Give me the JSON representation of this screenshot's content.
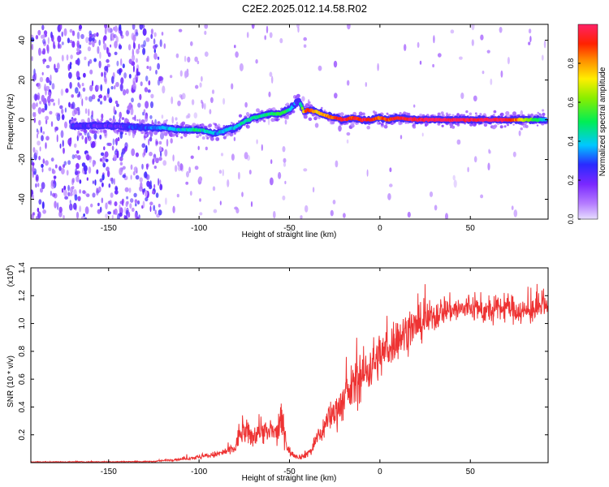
{
  "title": "C2E2.2025.012.14.58.R02",
  "chart_data": [
    {
      "type": "heatmap",
      "xlabel": "Height of straight line (km)",
      "ylabel": "Frequency (Hz)",
      "xlim": [
        -193,
        93
      ],
      "ylim": [
        -50,
        48
      ],
      "x_ticks": [
        -150,
        -100,
        -50,
        0,
        50
      ],
      "y_ticks": [
        -40,
        -20,
        0,
        20,
        40
      ],
      "colorbar": {
        "label": "Normalized spectral amplitude",
        "range": [
          0,
          1
        ],
        "ticks": [
          0.0,
          0.2,
          0.4,
          0.6,
          0.8
        ]
      },
      "ridge": {
        "x": [
          -165,
          -150,
          -130,
          -120,
          -110,
          -100,
          -95,
          -90,
          -85,
          -80,
          -75,
          -70,
          -65,
          -60,
          -55,
          -50,
          -47,
          -45,
          -42,
          -40,
          -35,
          -30,
          -25,
          -20,
          -15,
          -10,
          -5,
          0,
          5,
          10,
          20,
          30,
          50,
          70,
          90
        ],
        "frequency": [
          -3,
          -3,
          -4,
          -4,
          -5,
          -5,
          -6,
          -7,
          -5,
          -4,
          -1,
          1,
          2,
          3,
          3,
          5,
          8,
          10,
          4,
          5,
          4,
          2,
          1,
          0,
          1,
          0,
          0,
          1,
          0,
          1,
          0,
          0,
          0,
          0,
          0
        ],
        "amplitude": [
          0.25,
          0.2,
          0.3,
          0.35,
          0.4,
          0.45,
          0.4,
          0.35,
          0.4,
          0.4,
          0.45,
          0.45,
          0.45,
          0.5,
          0.55,
          0.45,
          0.3,
          0.2,
          0.8,
          0.9,
          0.75,
          0.8,
          0.9,
          0.95,
          0.9,
          0.95,
          0.9,
          0.85,
          0.9,
          0.95,
          0.98,
          1.0,
          1.0,
          0.98,
          0.4
        ]
      }
    },
    {
      "type": "line",
      "xlabel": "Height of straight line (km)",
      "ylabel": "SNR (10 * v/v)",
      "y_multiplier": "(x10",
      "y_multiplier_exp": "4",
      "y_multiplier_close": ")",
      "xlim": [
        -193,
        93
      ],
      "ylim": [
        0,
        1.4
      ],
      "x_ticks": [
        -150,
        -100,
        -50,
        0,
        50
      ],
      "y_ticks": [
        0.2,
        0.4,
        0.6,
        0.8,
        1.0,
        1.2,
        1.4
      ],
      "color": "#ee3333",
      "series": {
        "x": [
          -193,
          -150,
          -125,
          -120,
          -110,
          -100,
          -90,
          -85,
          -80,
          -78,
          -75,
          -72,
          -70,
          -68,
          -65,
          -62,
          -60,
          -57,
          -55,
          -53,
          -51,
          -50,
          -48,
          -45,
          -42,
          -40,
          -37,
          -35,
          -32,
          -30,
          -28,
          -25,
          -22,
          -20,
          -17,
          -15,
          -12,
          -10,
          -7,
          -5,
          -2,
          0,
          3,
          5,
          8,
          10,
          13,
          15,
          18,
          20,
          23,
          25,
          28,
          30,
          33,
          35,
          40,
          45,
          50,
          55,
          60,
          65,
          70,
          75,
          80,
          85,
          90,
          93
        ],
        "mean": [
          0.005,
          0.006,
          0.008,
          0.015,
          0.025,
          0.04,
          0.06,
          0.08,
          0.1,
          0.2,
          0.22,
          0.2,
          0.18,
          0.23,
          0.25,
          0.2,
          0.23,
          0.2,
          0.3,
          0.25,
          0.1,
          0.08,
          0.06,
          0.04,
          0.05,
          0.07,
          0.1,
          0.18,
          0.22,
          0.28,
          0.33,
          0.36,
          0.42,
          0.45,
          0.5,
          0.55,
          0.6,
          0.62,
          0.66,
          0.7,
          0.74,
          0.77,
          0.8,
          0.83,
          0.88,
          0.9,
          0.92,
          0.95,
          0.97,
          0.98,
          1.0,
          1.02,
          1.04,
          1.05,
          1.08,
          1.1,
          1.1,
          1.1,
          1.12,
          1.1,
          1.08,
          1.1,
          1.12,
          1.1,
          1.08,
          1.1,
          1.12,
          1.1
        ],
        "noise": [
          0.004,
          0.004,
          0.005,
          0.008,
          0.012,
          0.02,
          0.03,
          0.04,
          0.06,
          0.1,
          0.12,
          0.1,
          0.09,
          0.12,
          0.14,
          0.1,
          0.12,
          0.1,
          0.16,
          0.12,
          0.05,
          0.04,
          0.03,
          0.02,
          0.03,
          0.04,
          0.05,
          0.08,
          0.1,
          0.12,
          0.13,
          0.15,
          0.17,
          0.18,
          0.2,
          0.2,
          0.22,
          0.22,
          0.22,
          0.22,
          0.22,
          0.2,
          0.2,
          0.2,
          0.2,
          0.19,
          0.18,
          0.18,
          0.17,
          0.16,
          0.16,
          0.15,
          0.15,
          0.14,
          0.14,
          0.13,
          0.12,
          0.12,
          0.12,
          0.12,
          0.12,
          0.12,
          0.12,
          0.12,
          0.12,
          0.12,
          0.12,
          0.12
        ]
      }
    }
  ]
}
